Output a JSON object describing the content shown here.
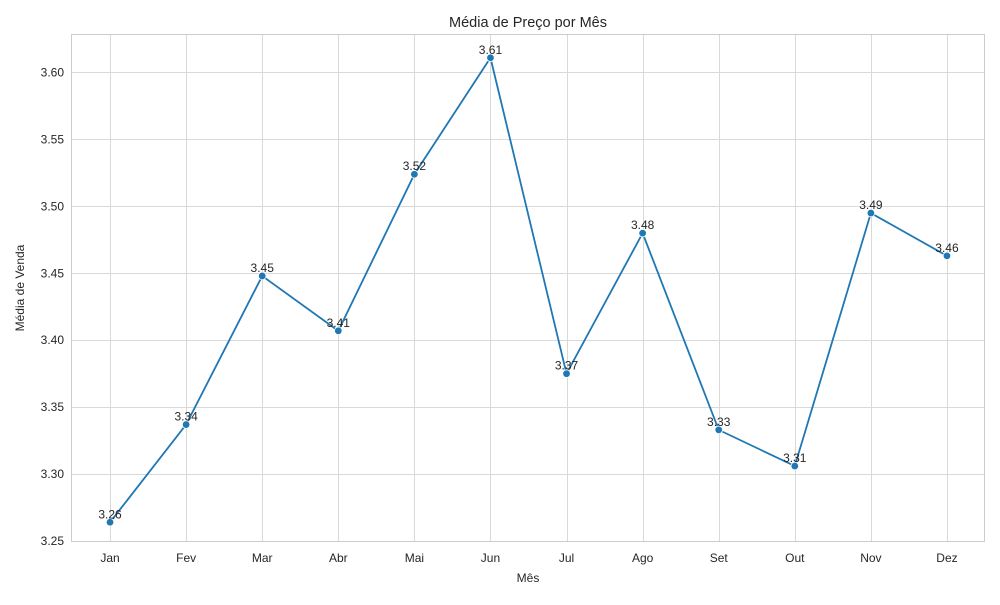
{
  "chart_data": {
    "type": "line",
    "title": "Média de Preço por Mês",
    "xlabel": "Mês",
    "ylabel": "Média de Venda",
    "categories": [
      "Jan",
      "Fev",
      "Mar",
      "Abr",
      "Mai",
      "Jun",
      "Jul",
      "Ago",
      "Set",
      "Out",
      "Nov",
      "Dez"
    ],
    "values": [
      3.264,
      3.337,
      3.448,
      3.407,
      3.524,
      3.611,
      3.375,
      3.48,
      3.333,
      3.306,
      3.495,
      3.463
    ],
    "data_labels": [
      "3.26",
      "3.34",
      "3.45",
      "3.41",
      "3.52",
      "3.61",
      "3.37",
      "3.48",
      "3.33",
      "3.31",
      "3.49",
      "3.46"
    ],
    "ylim": [
      3.25,
      3.628
    ],
    "yticks": [
      3.25,
      3.3,
      3.35,
      3.4,
      3.45,
      3.5,
      3.55,
      3.6
    ],
    "ytick_labels": [
      "3.25",
      "3.30",
      "3.35",
      "3.40",
      "3.45",
      "3.50",
      "3.55",
      "3.60"
    ],
    "grid": true,
    "marker": "circle",
    "line_color": "#1f77b4"
  }
}
